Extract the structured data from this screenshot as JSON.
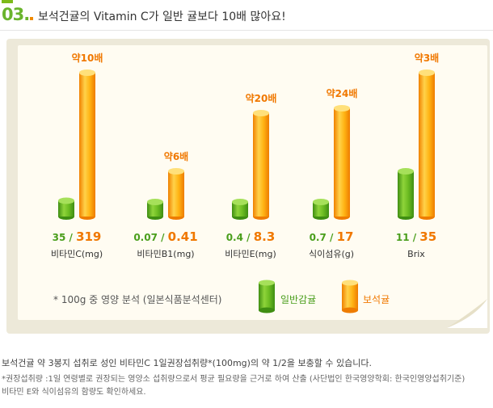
{
  "header": {
    "number": "03.",
    "title": "보석건귤의 Vitamin C가 일반 귤보다 10배 많아요!"
  },
  "colors": {
    "green": "#5fae22",
    "orange": "#f59a00",
    "multiplier_text": "#f07800",
    "value_green": "#4a9e1c",
    "value_orange": "#f07800"
  },
  "chart_data": {
    "type": "bar",
    "categories": [
      "비타민C(mg)",
      "비타민B1(mg)",
      "비타민E(mg)",
      "식이섬유(g)",
      "Brix"
    ],
    "series": [
      {
        "name": "일반감귤",
        "values": [
          35,
          0.07,
          0.4,
          0.7,
          11
        ],
        "value_labels": [
          "35",
          "0.07",
          "0.4",
          "0.7",
          "11"
        ]
      },
      {
        "name": "보석귤",
        "values": [
          319,
          0.41,
          8.3,
          17,
          35
        ],
        "value_labels": [
          "319",
          "0.41",
          "8.3",
          "17",
          "35"
        ]
      }
    ],
    "multipliers": [
      "약10배",
      "약6배",
      "약20배",
      "약24배",
      "약3배"
    ],
    "note": "* 100g 중 영양 분석 (일본식품분석센터)",
    "legend_position": "bottom-right"
  },
  "footer": {
    "line1": "보석건귤 약 3봉지 섭취로 성인 비타민C 1일권장섭취량*(100mg)의 약 1/2을 보충할 수 있습니다.",
    "line2": "*권장섭취량 :1일 연령별로 권장되는 영양소 섭취량으로서 평균 필요량을 근거로 하여 산출  (사단법인 한국영양학회: 한국인영양섭취기준)",
    "line3": "비타민 E와 식이섬유의 함량도 확인하세요."
  }
}
